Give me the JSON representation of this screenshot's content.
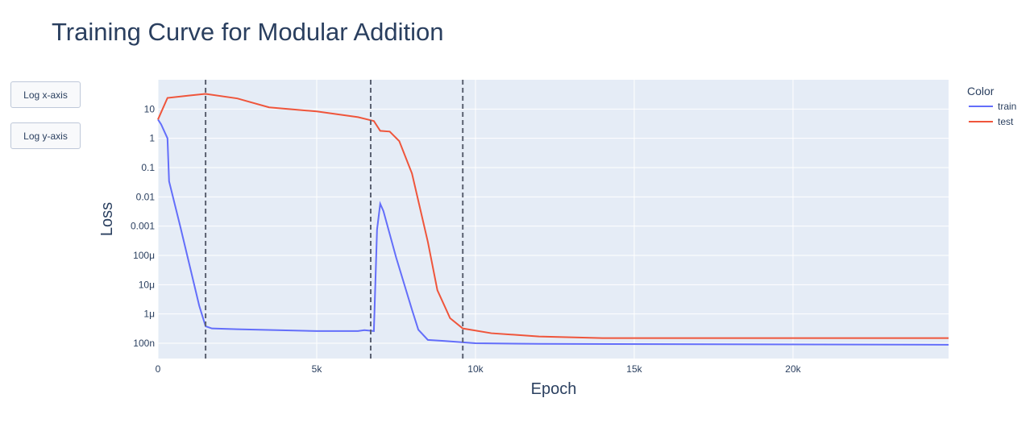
{
  "buttons": [
    "Log x-axis",
    "Log y-axis"
  ],
  "chart_data": {
    "type": "line",
    "title": "Training Curve for Modular Addition",
    "x_label": "Epoch",
    "y_label": "Loss",
    "legend_title": "Color",
    "log_y": true,
    "grid": true,
    "plot_bg": "#e5ecf6",
    "xlim": [
      0,
      24900
    ],
    "ylim": [
      3e-08,
      100
    ],
    "xticks": [
      0,
      {
        "value": 5000,
        "label": "5k"
      },
      {
        "value": 10000,
        "label": "10k"
      },
      {
        "value": 15000,
        "label": "15k"
      },
      {
        "value": 20000,
        "label": "20k"
      }
    ],
    "yticks": [
      {
        "value": 1e-07,
        "label": "100n"
      },
      {
        "value": 1e-06,
        "label": "1μ"
      },
      {
        "value": 1e-05,
        "label": "10μ"
      },
      {
        "value": 0.0001,
        "label": "100μ"
      },
      0.001,
      0.01,
      0.1,
      1,
      10
    ],
    "vlines": [
      1500,
      6700,
      9600
    ],
    "series": [
      {
        "name": "train",
        "color": "#636efa",
        "x": [
          0,
          100,
          300,
          350,
          700,
          1000,
          1300,
          1500,
          1700,
          2500,
          5000,
          6300,
          6500,
          6800,
          6900,
          7000,
          7100,
          7500,
          8000,
          8200,
          8500,
          9000,
          10000,
          12000,
          24900
        ],
        "values": [
          4.4,
          3,
          1,
          0.034,
          0.001,
          4.4e-05,
          1.9e-06,
          3.8e-07,
          3.2e-07,
          3e-07,
          2.6e-07,
          2.6e-07,
          2.8e-07,
          2.6e-07,
          0.00076,
          0.0058,
          0.0033,
          8.6e-05,
          1.4e-06,
          2.9e-07,
          1.3e-07,
          1.2e-07,
          1e-07,
          9.5e-08,
          8.9e-08
        ]
      },
      {
        "name": "test",
        "color": "#ef553b",
        "x": [
          0,
          300,
          1000,
          1500,
          2500,
          3500,
          5000,
          6300,
          6800,
          7000,
          7300,
          7600,
          8000,
          8500,
          8800,
          9200,
          9600,
          10500,
          12000,
          14000,
          24900
        ],
        "values": [
          4.4,
          24,
          29,
          33,
          23,
          11.4,
          8.3,
          5.3,
          3.9,
          1.8,
          1.7,
          0.8,
          0.063,
          0.00029,
          6.5e-06,
          7.2e-07,
          3.2e-07,
          2.2e-07,
          1.7e-07,
          1.5e-07,
          1.5e-07
        ]
      }
    ]
  }
}
